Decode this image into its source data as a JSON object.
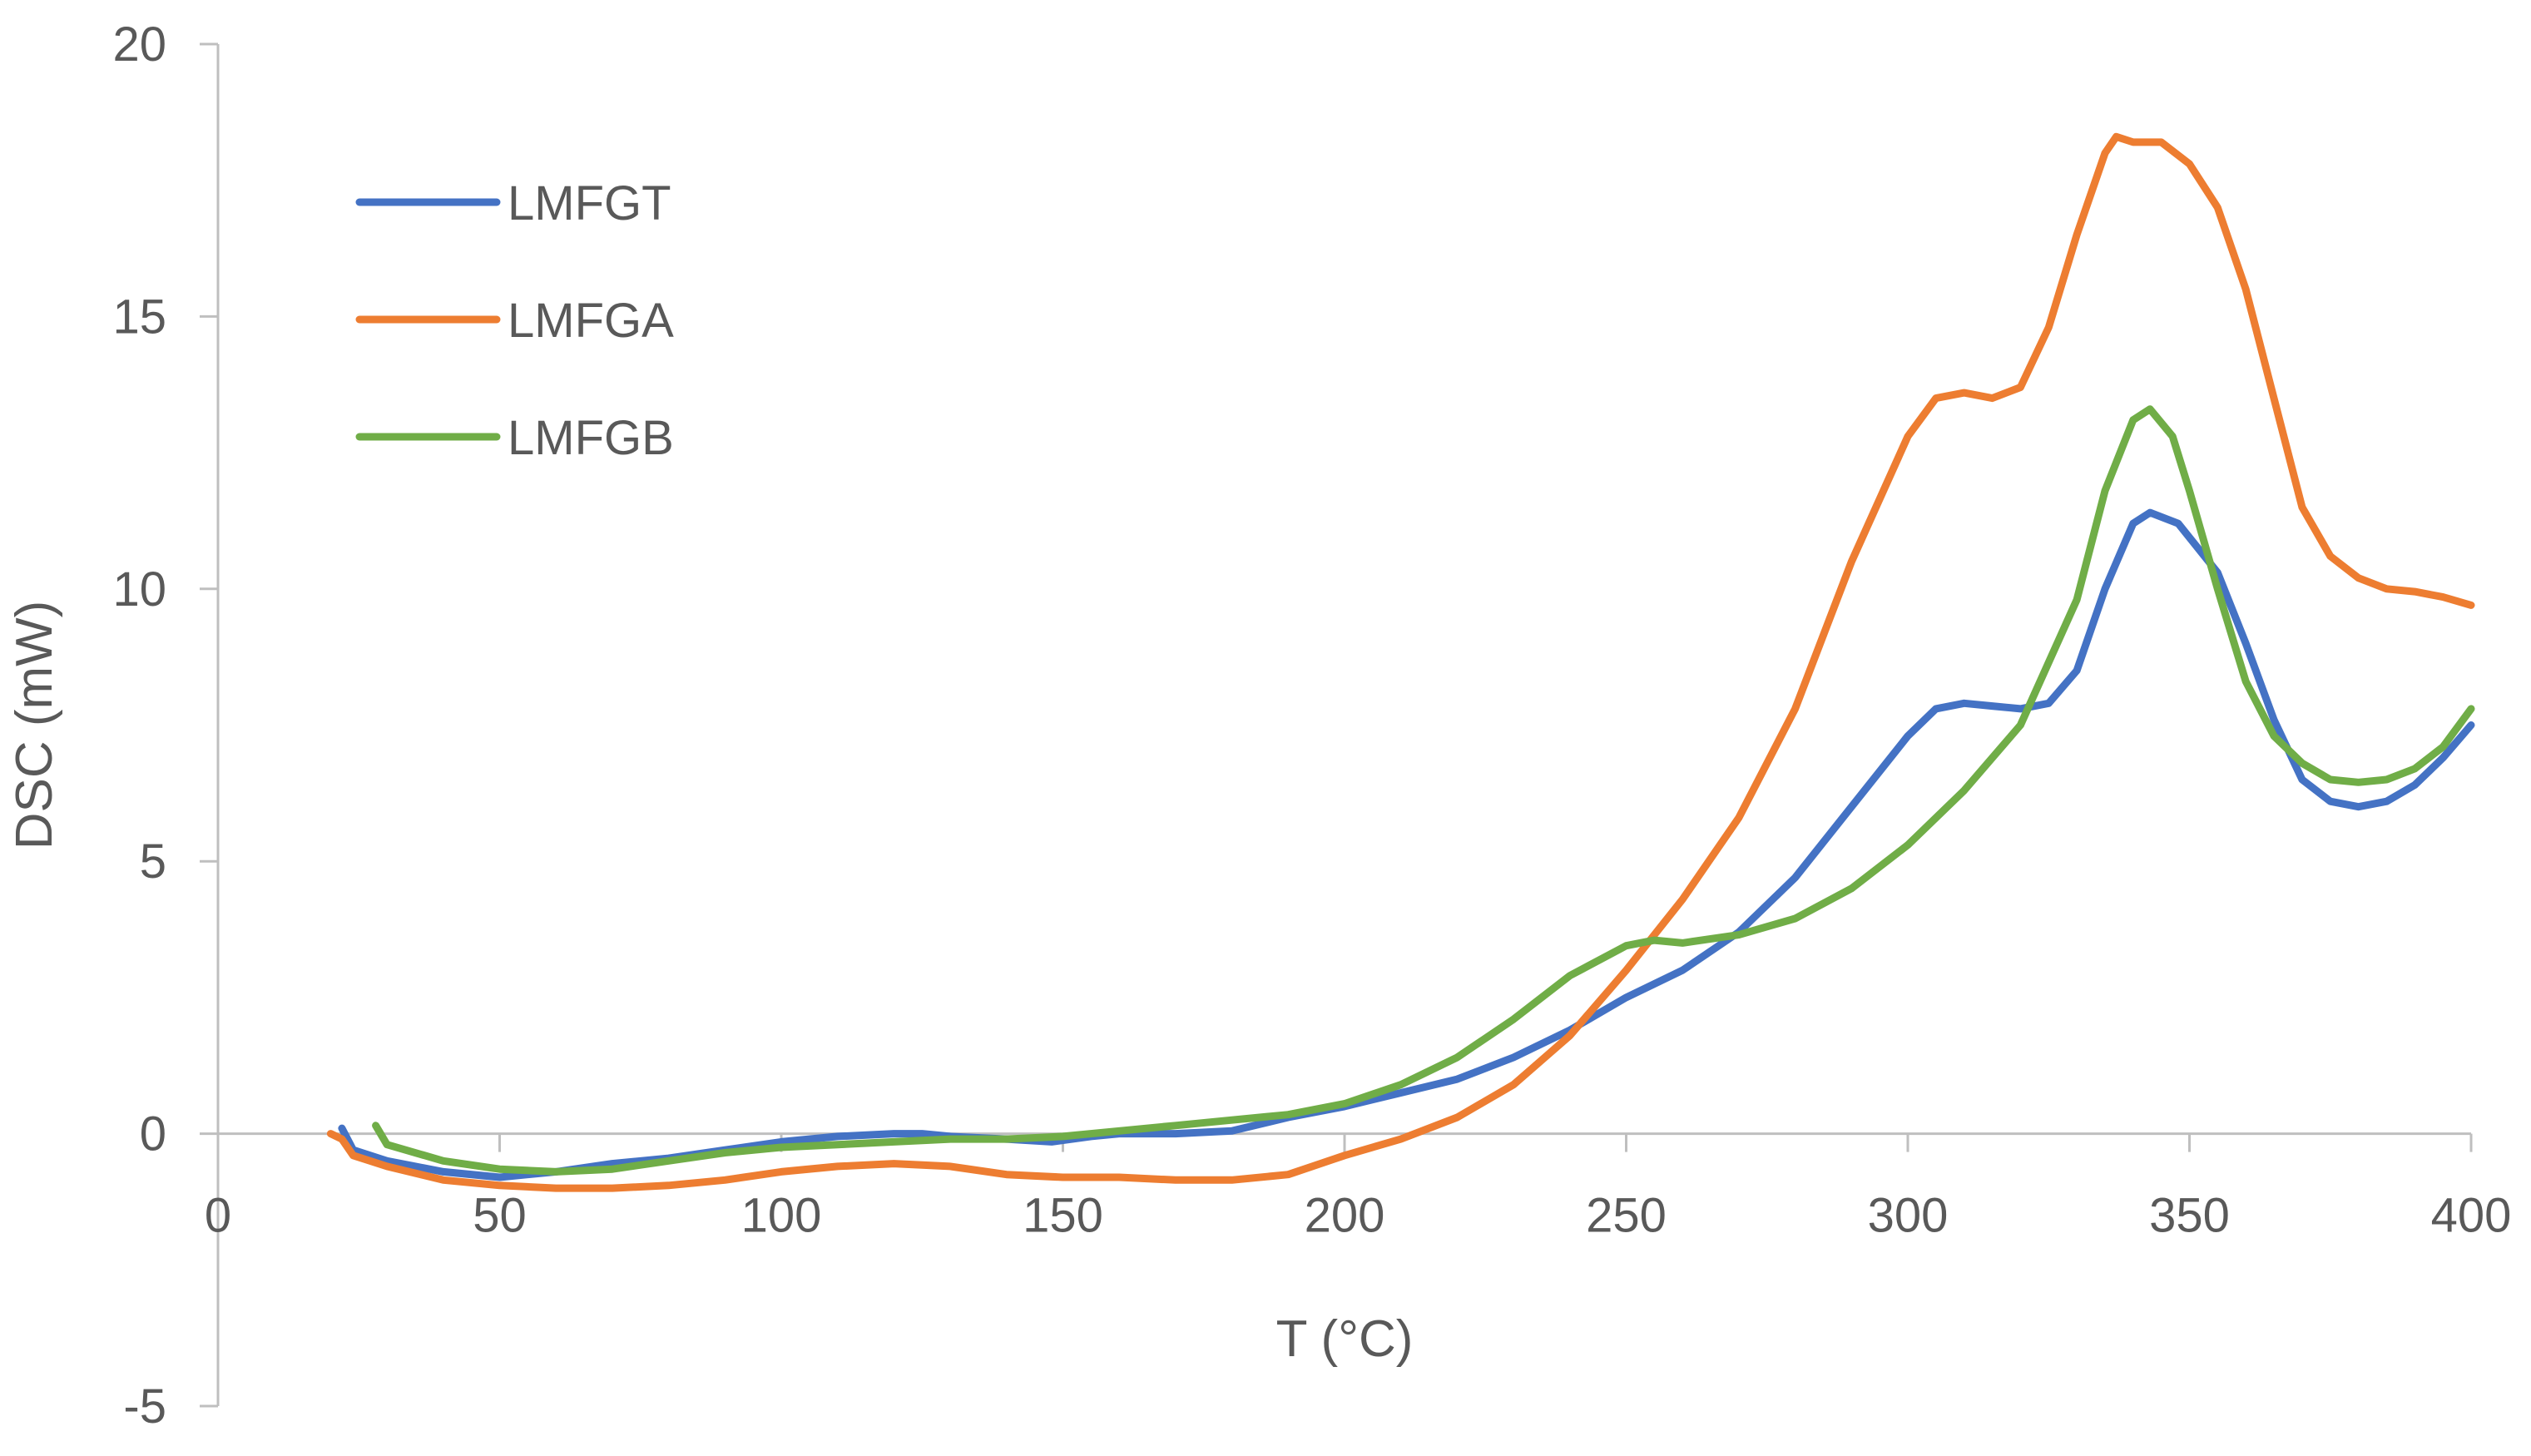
{
  "chart_data": {
    "type": "line",
    "xlabel": "T (°C)",
    "ylabel": "DSC (mW)",
    "xlim": [
      0,
      400
    ],
    "ylim": [
      -5,
      20
    ],
    "x_ticks": [
      "0",
      "50",
      "100",
      "150",
      "200",
      "250",
      "300",
      "350",
      "400"
    ],
    "y_ticks": [
      "20",
      "15",
      "10",
      "5",
      "0",
      "-5"
    ],
    "grid": false,
    "legend_position": "top-left",
    "series": [
      {
        "name": "LMFGT",
        "color": "#4472C4",
        "points": [
          [
            22,
            0.1
          ],
          [
            24,
            -0.3
          ],
          [
            30,
            -0.5
          ],
          [
            40,
            -0.7
          ],
          [
            50,
            -0.8
          ],
          [
            60,
            -0.7
          ],
          [
            70,
            -0.55
          ],
          [
            80,
            -0.45
          ],
          [
            90,
            -0.3
          ],
          [
            100,
            -0.15
          ],
          [
            110,
            -0.05
          ],
          [
            120,
            0.0
          ],
          [
            125,
            0.0
          ],
          [
            130,
            -0.05
          ],
          [
            140,
            -0.1
          ],
          [
            148,
            -0.15
          ],
          [
            155,
            -0.05
          ],
          [
            160,
            0.0
          ],
          [
            170,
            0.0
          ],
          [
            180,
            0.05
          ],
          [
            190,
            0.3
          ],
          [
            200,
            0.5
          ],
          [
            210,
            0.75
          ],
          [
            220,
            1.0
          ],
          [
            230,
            1.4
          ],
          [
            240,
            1.9
          ],
          [
            250,
            2.5
          ],
          [
            260,
            3.0
          ],
          [
            270,
            3.7
          ],
          [
            280,
            4.7
          ],
          [
            290,
            6.0
          ],
          [
            300,
            7.3
          ],
          [
            305,
            7.8
          ],
          [
            310,
            7.9
          ],
          [
            315,
            7.85
          ],
          [
            320,
            7.8
          ],
          [
            325,
            7.9
          ],
          [
            330,
            8.5
          ],
          [
            335,
            10.0
          ],
          [
            340,
            11.2
          ],
          [
            343,
            11.4
          ],
          [
            348,
            11.2
          ],
          [
            355,
            10.3
          ],
          [
            360,
            9.0
          ],
          [
            365,
            7.6
          ],
          [
            370,
            6.5
          ],
          [
            375,
            6.1
          ],
          [
            380,
            6.0
          ],
          [
            385,
            6.1
          ],
          [
            390,
            6.4
          ],
          [
            395,
            6.9
          ],
          [
            400,
            7.5
          ]
        ]
      },
      {
        "name": "LMFGA",
        "color": "#ED7D31",
        "points": [
          [
            20,
            0.0
          ],
          [
            22,
            -0.1
          ],
          [
            24,
            -0.4
          ],
          [
            30,
            -0.6
          ],
          [
            40,
            -0.85
          ],
          [
            50,
            -0.95
          ],
          [
            60,
            -1.0
          ],
          [
            70,
            -1.0
          ],
          [
            80,
            -0.95
          ],
          [
            90,
            -0.85
          ],
          [
            100,
            -0.7
          ],
          [
            110,
            -0.6
          ],
          [
            120,
            -0.55
          ],
          [
            130,
            -0.6
          ],
          [
            140,
            -0.75
          ],
          [
            150,
            -0.8
          ],
          [
            160,
            -0.8
          ],
          [
            170,
            -0.85
          ],
          [
            180,
            -0.85
          ],
          [
            190,
            -0.75
          ],
          [
            200,
            -0.4
          ],
          [
            210,
            -0.1
          ],
          [
            220,
            0.3
          ],
          [
            230,
            0.9
          ],
          [
            240,
            1.8
          ],
          [
            250,
            3.0
          ],
          [
            260,
            4.3
          ],
          [
            270,
            5.8
          ],
          [
            280,
            7.8
          ],
          [
            290,
            10.5
          ],
          [
            300,
            12.8
          ],
          [
            305,
            13.5
          ],
          [
            310,
            13.6
          ],
          [
            315,
            13.5
          ],
          [
            320,
            13.7
          ],
          [
            325,
            14.8
          ],
          [
            330,
            16.5
          ],
          [
            335,
            18.0
          ],
          [
            337,
            18.3
          ],
          [
            340,
            18.2
          ],
          [
            345,
            18.2
          ],
          [
            350,
            17.8
          ],
          [
            355,
            17.0
          ],
          [
            360,
            15.5
          ],
          [
            365,
            13.5
          ],
          [
            370,
            11.5
          ],
          [
            375,
            10.6
          ],
          [
            380,
            10.2
          ],
          [
            385,
            10.0
          ],
          [
            390,
            9.95
          ],
          [
            395,
            9.85
          ],
          [
            400,
            9.7
          ]
        ]
      },
      {
        "name": "LMFGB",
        "color": "#70AD47",
        "points": [
          [
            28,
            0.15
          ],
          [
            30,
            -0.2
          ],
          [
            40,
            -0.5
          ],
          [
            50,
            -0.65
          ],
          [
            60,
            -0.7
          ],
          [
            70,
            -0.65
          ],
          [
            80,
            -0.5
          ],
          [
            90,
            -0.35
          ],
          [
            100,
            -0.25
          ],
          [
            110,
            -0.2
          ],
          [
            120,
            -0.15
          ],
          [
            130,
            -0.1
          ],
          [
            140,
            -0.1
          ],
          [
            150,
            -0.05
          ],
          [
            160,
            0.05
          ],
          [
            170,
            0.15
          ],
          [
            180,
            0.25
          ],
          [
            190,
            0.35
          ],
          [
            200,
            0.55
          ],
          [
            210,
            0.9
          ],
          [
            220,
            1.4
          ],
          [
            230,
            2.1
          ],
          [
            240,
            2.9
          ],
          [
            250,
            3.45
          ],
          [
            255,
            3.55
          ],
          [
            260,
            3.5
          ],
          [
            270,
            3.65
          ],
          [
            280,
            3.95
          ],
          [
            290,
            4.5
          ],
          [
            300,
            5.3
          ],
          [
            310,
            6.3
          ],
          [
            320,
            7.5
          ],
          [
            330,
            9.8
          ],
          [
            335,
            11.8
          ],
          [
            340,
            13.1
          ],
          [
            343,
            13.3
          ],
          [
            347,
            12.8
          ],
          [
            350,
            11.8
          ],
          [
            355,
            10.0
          ],
          [
            360,
            8.3
          ],
          [
            365,
            7.3
          ],
          [
            370,
            6.8
          ],
          [
            375,
            6.5
          ],
          [
            380,
            6.45
          ],
          [
            385,
            6.5
          ],
          [
            390,
            6.7
          ],
          [
            395,
            7.1
          ],
          [
            400,
            7.8
          ]
        ]
      }
    ]
  }
}
